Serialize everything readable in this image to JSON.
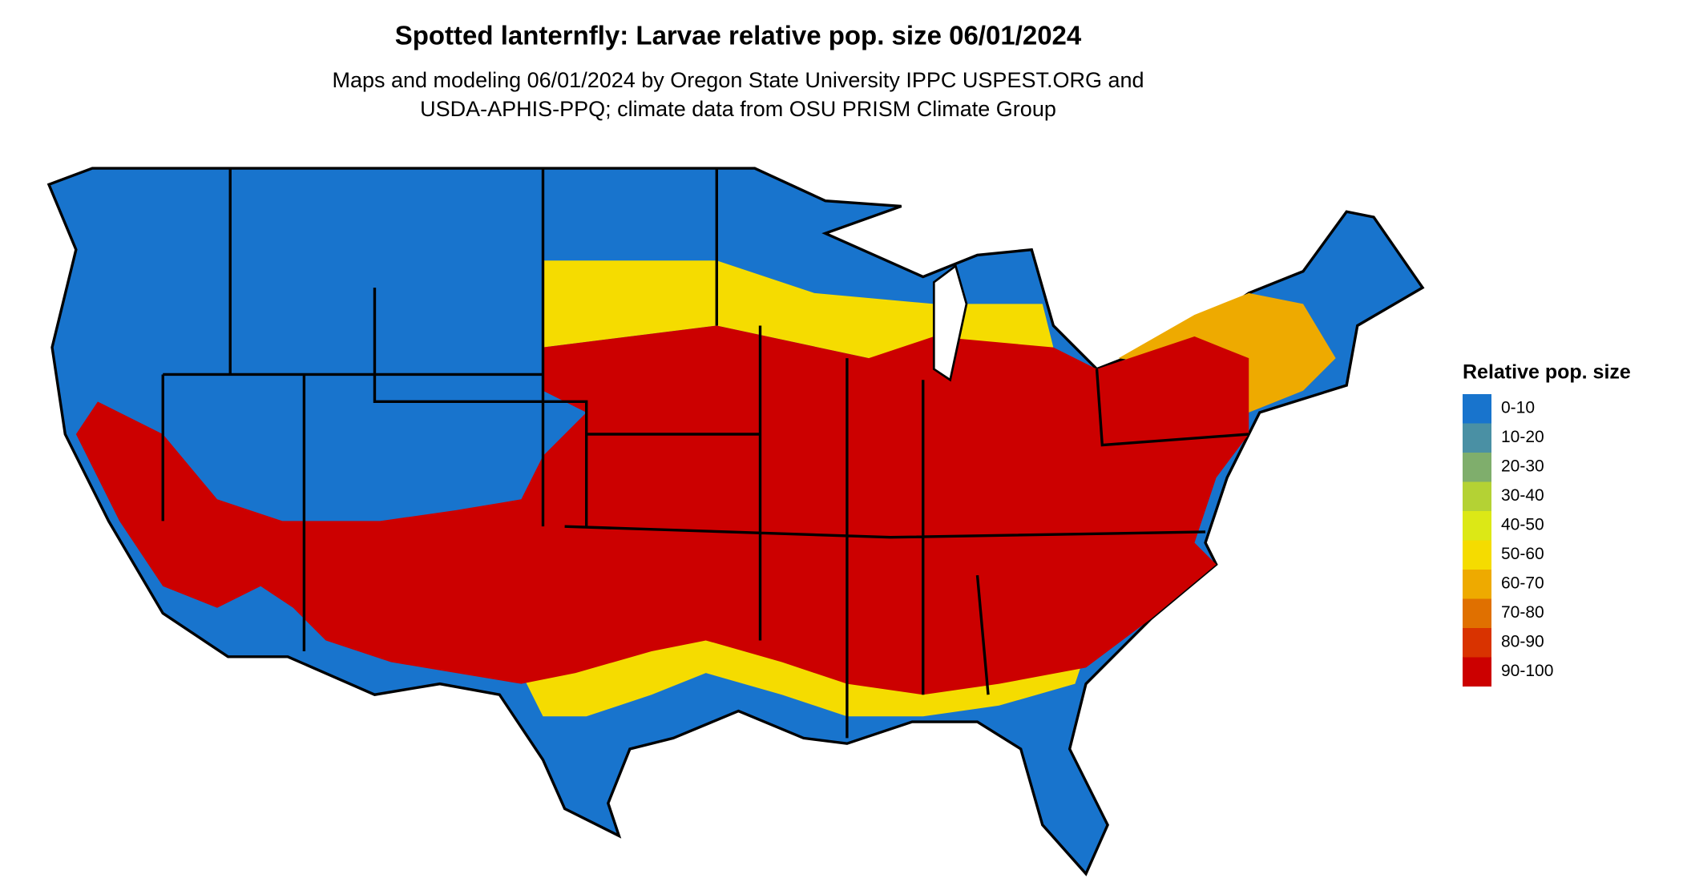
{
  "title": "Spotted lanternfly: Larvae relative pop. size 06/01/2024",
  "subtitle": [
    "Maps and modeling 06/01/2024 by Oregon State University IPPC USPEST.ORG and",
    "USDA-APHIS-PPQ; climate data from OSU PRISM Climate Group"
  ],
  "legend": {
    "title": "Relative pop. size",
    "items": [
      {
        "label": "0-10",
        "color": "#1874cd"
      },
      {
        "label": "10-20",
        "color": "#4a90a4"
      },
      {
        "label": "20-30",
        "color": "#7fae6c"
      },
      {
        "label": "30-40",
        "color": "#b4d234"
      },
      {
        "label": "40-50",
        "color": "#dce816"
      },
      {
        "label": "50-60",
        "color": "#f5dc00"
      },
      {
        "label": "60-70",
        "color": "#eeaa00"
      },
      {
        "label": "70-80",
        "color": "#e07000"
      },
      {
        "label": "80-90",
        "color": "#d93300"
      },
      {
        "label": "90-100",
        "color": "#cc0000"
      }
    ]
  }
}
